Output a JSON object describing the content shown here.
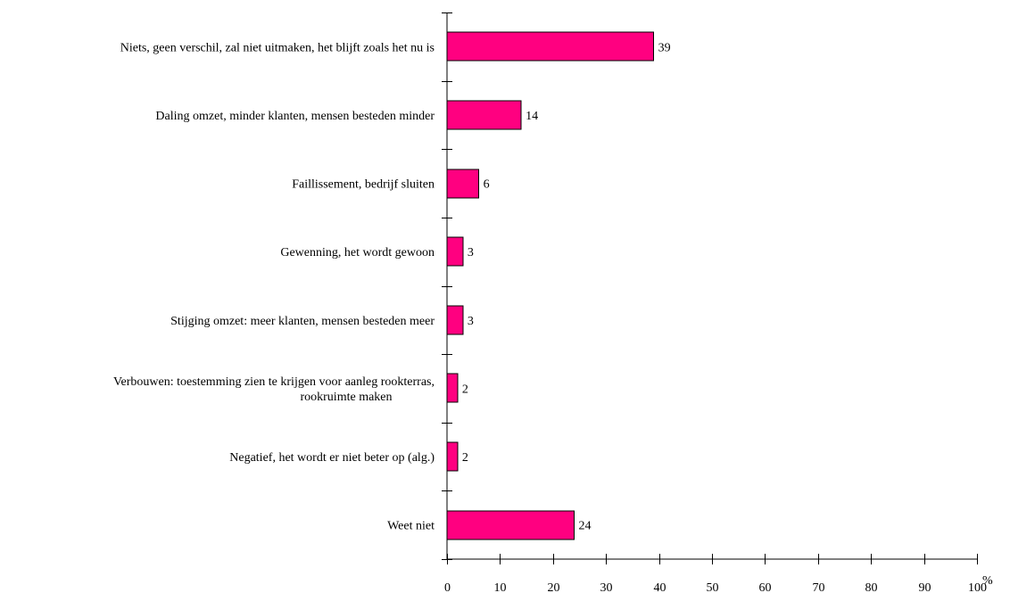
{
  "chart_data": {
    "type": "bar",
    "orientation": "horizontal",
    "categories": [
      [
        "Niets, geen verschil, zal niet uitmaken, het blijft zoals het nu is"
      ],
      [
        "Daling omzet, minder klanten, mensen besteden minder"
      ],
      [
        "Faillissement, bedrijf sluiten"
      ],
      [
        "Gewenning, het wordt gewoon"
      ],
      [
        "Stijging omzet: meer klanten, mensen besteden meer"
      ],
      [
        "Verbouwen: toestemming zien te krijgen voor aanleg rookterras,",
        "rookruimte maken"
      ],
      [
        "Negatief, het wordt er niet beter op (alg.)"
      ],
      [
        "Weet niet"
      ]
    ],
    "values": [
      39,
      14,
      6,
      3,
      3,
      2,
      2,
      24
    ],
    "value_labels": [
      "39",
      "14",
      "6",
      "3",
      "3",
      "2",
      "2",
      "24"
    ],
    "x_ticks": [
      "0",
      "10",
      "20",
      "30",
      "40",
      "50",
      "60",
      "70",
      "80",
      "90",
      "100"
    ],
    "xlim": [
      0,
      100
    ],
    "xlabel": "%",
    "title": "",
    "ylabel": "",
    "grid": false,
    "bar_color": "#ff0080",
    "bar_edge_color": "#000000"
  }
}
